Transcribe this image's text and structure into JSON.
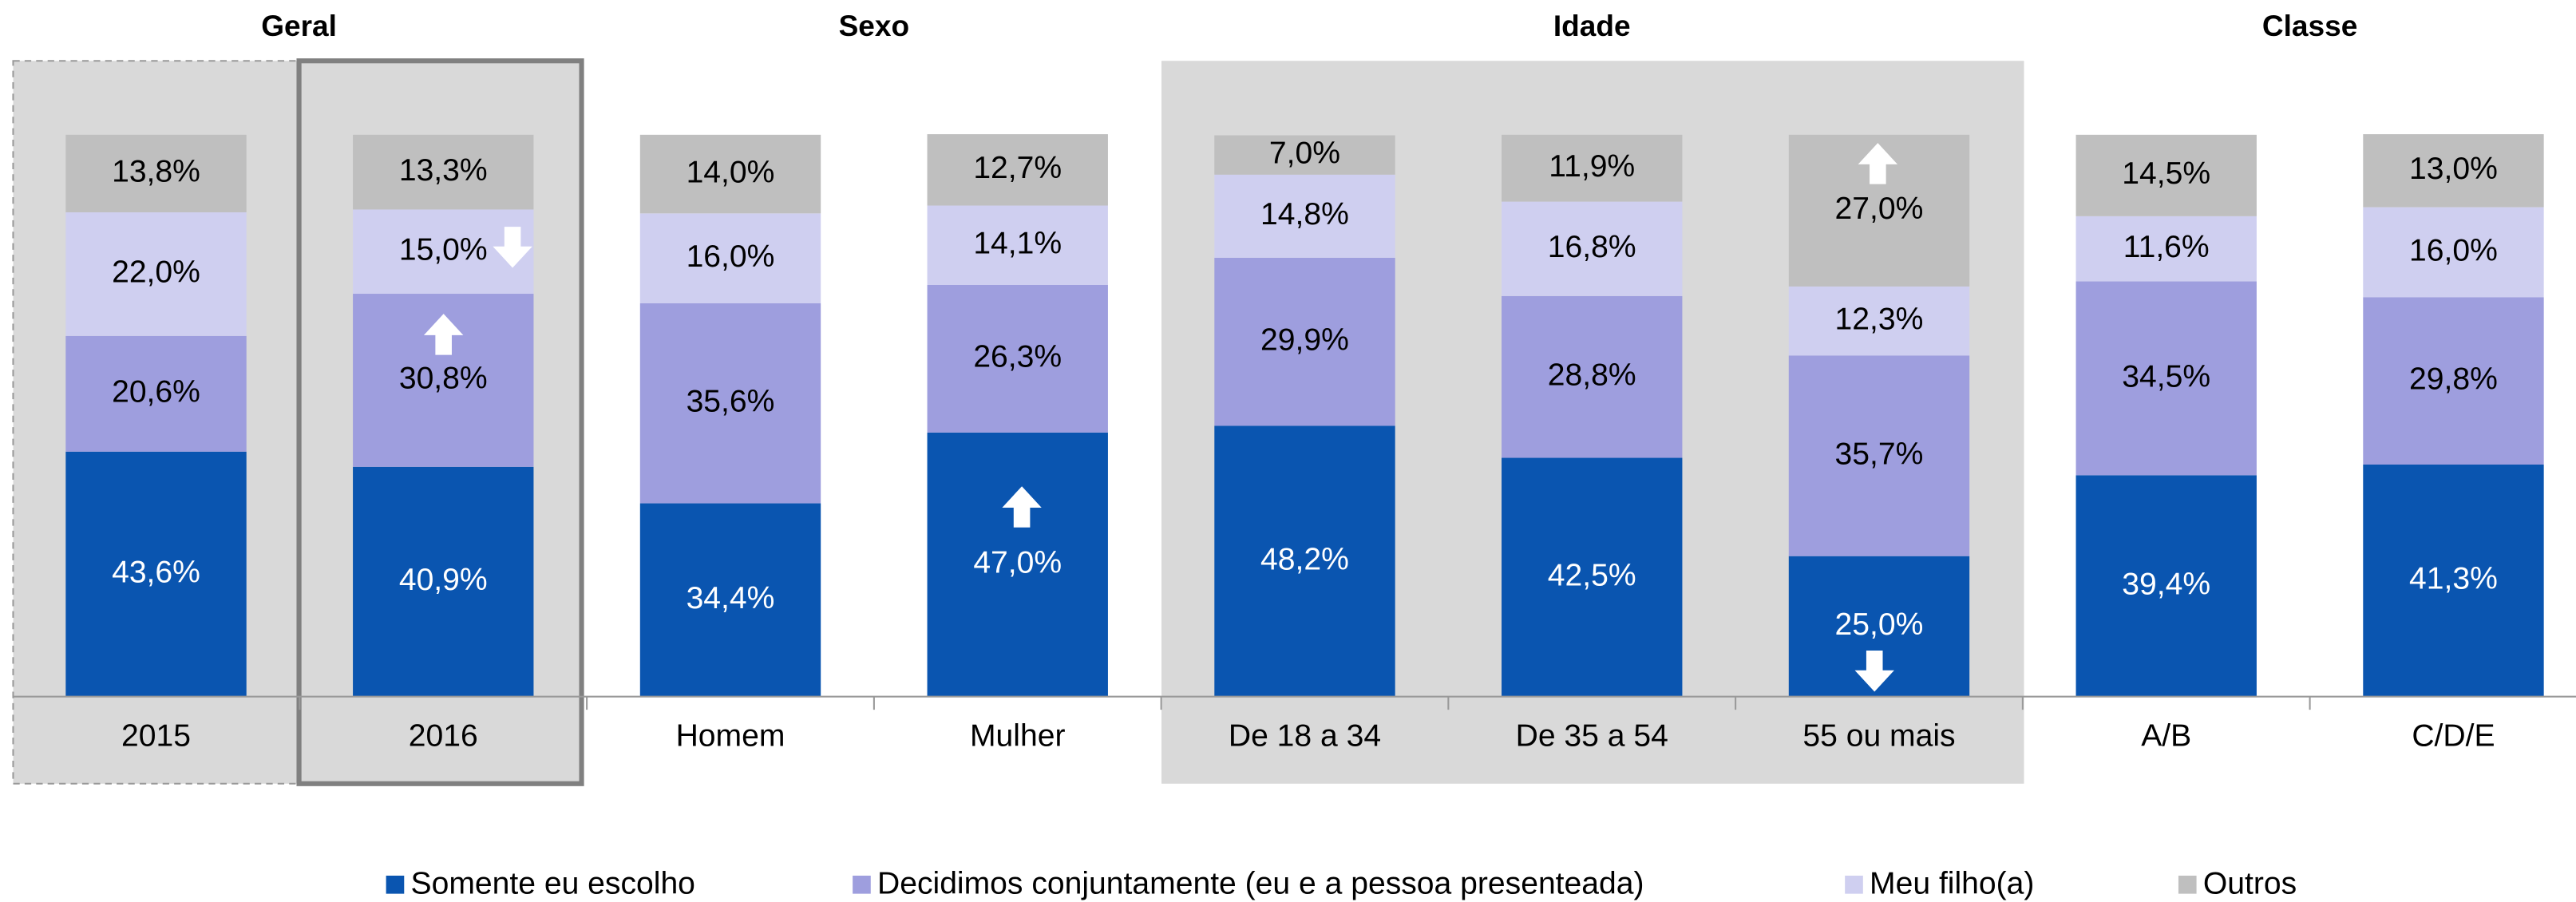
{
  "chart_data": {
    "type": "stacked_bar",
    "groups": [
      "Geral",
      "Sexo",
      "Idade",
      "Classe"
    ],
    "categories": [
      "2015",
      "2016",
      "Homem",
      "Mulher",
      "De 18 a 34",
      "De 35 a 54",
      "55 ou mais",
      "A/B",
      "C/D/E"
    ],
    "ylim": [
      0,
      100
    ],
    "series": [
      {
        "name": "Somente eu escolho",
        "color": "#0a55b0",
        "label_color": "#ffffff",
        "values": [
          43.6,
          40.9,
          34.4,
          47.0,
          48.2,
          42.5,
          25.0,
          39.4,
          41.3
        ],
        "value_labels": [
          "43,6%",
          "40,9%",
          "34,4%",
          "47,0%",
          "48,2%",
          "42,5%",
          "25,0%",
          "39,4%",
          "41,3%"
        ]
      },
      {
        "name": "Decidimos conjuntamente (eu e a pessoa presenteada)",
        "color": "#9e9ede",
        "label_color": "#000000",
        "values": [
          20.6,
          30.8,
          35.6,
          26.3,
          29.9,
          28.8,
          35.7,
          34.5,
          29.8
        ],
        "value_labels": [
          "20,6%",
          "30,8%",
          "35,6%",
          "26,3%",
          "29,9%",
          "28,8%",
          "35,7%",
          "34,5%",
          "29,8%"
        ]
      },
      {
        "name": "Meu filho(a)",
        "color": "#cfcff0",
        "label_color": "#000000",
        "values": [
          22.0,
          15.0,
          16.0,
          14.1,
          14.8,
          16.8,
          12.3,
          11.6,
          16.0
        ],
        "value_labels": [
          "22,0%",
          "15,0%",
          "16,0%",
          "14,1%",
          "14,8%",
          "16,8%",
          "12,3%",
          "11,6%",
          "16,0%"
        ]
      },
      {
        "name": "Outros",
        "color": "#bfbfbf",
        "label_color": "#000000",
        "values": [
          13.8,
          13.3,
          14.0,
          12.7,
          7.0,
          11.9,
          27.0,
          14.5,
          13.0
        ],
        "value_labels": [
          "13,8%",
          "13,3%",
          "14,0%",
          "12,7%",
          "7,0%",
          "11,9%",
          "27,0%",
          "14,5%",
          "13,0%"
        ]
      }
    ]
  }
}
